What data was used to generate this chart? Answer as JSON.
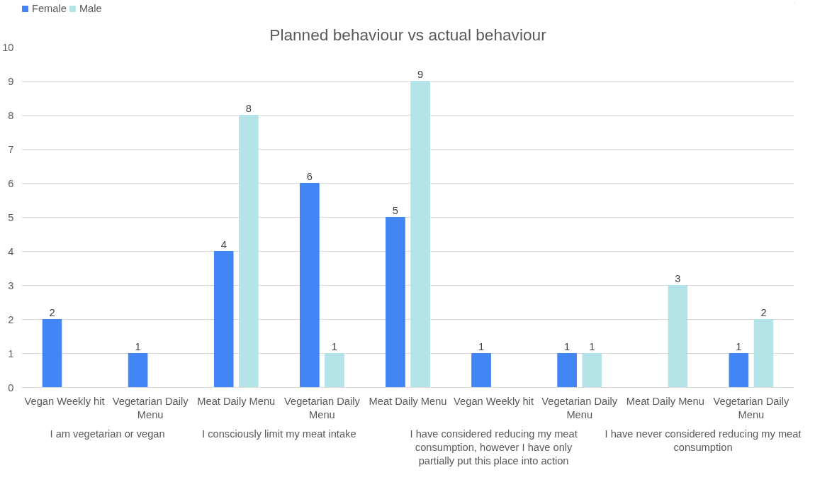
{
  "chart_data": {
    "type": "bar",
    "title": "Planned behaviour vs actual behaviour",
    "categories": [
      "Vegan Weekly hit",
      "Vegetarian Daily Menu",
      "Meat Daily Menu",
      "Vegetarian Daily Menu",
      "Meat Daily Menu",
      "Vegan Weekly hit",
      "Vegetarian Daily Menu",
      "Meat Daily Menu",
      "Vegetarian Daily Menu"
    ],
    "series": [
      {
        "name": "Female",
        "color": "#4285f4",
        "values": [
          2,
          1,
          4,
          6,
          5,
          1,
          1,
          null,
          1
        ]
      },
      {
        "name": "Male",
        "color": "#b4e4e7",
        "values": [
          null,
          null,
          8,
          1,
          9,
          null,
          1,
          3,
          2
        ]
      }
    ],
    "annotations": [
      "I am vegetarian or vegan",
      "I consciously limit my meat intake",
      "I have considered reducing my meat consumption, however I have only partially put this place into action",
      "I have never considered reducing my meat consumption"
    ],
    "ylim": [
      0,
      10
    ],
    "yticks": [
      0,
      1,
      2,
      3,
      4,
      5,
      6,
      7,
      8,
      9,
      10
    ],
    "grid": "y",
    "legend": "top left",
    "data_labels": true
  }
}
